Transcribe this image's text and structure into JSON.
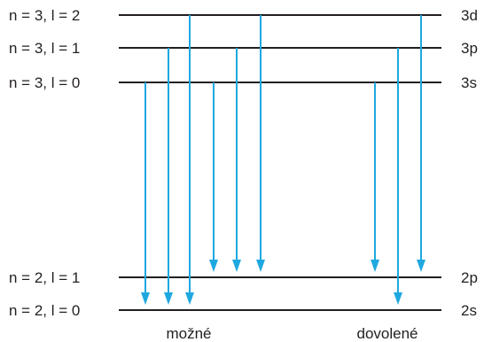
{
  "levels": [
    {
      "id": "3d",
      "left_label": "n = 3, l = 2",
      "right_label": "3d"
    },
    {
      "id": "3p",
      "left_label": "n = 3, l = 1",
      "right_label": "3p"
    },
    {
      "id": "3s",
      "left_label": "n = 3, l = 0",
      "right_label": "3s"
    },
    {
      "id": "2p",
      "left_label": "n = 2, l = 1",
      "right_label": "2p"
    },
    {
      "id": "2s",
      "left_label": "n = 2, l = 0",
      "right_label": "2s"
    }
  ],
  "groups": {
    "possible": {
      "label": "možné",
      "transitions": [
        {
          "from": "3s",
          "to": "2s"
        },
        {
          "from": "3p",
          "to": "2s"
        },
        {
          "from": "3d",
          "to": "2s"
        },
        {
          "from": "3s",
          "to": "2p"
        },
        {
          "from": "3p",
          "to": "2p"
        },
        {
          "from": "3d",
          "to": "2p"
        }
      ]
    },
    "allowed": {
      "label": "dovolené",
      "transitions": [
        {
          "from": "3s",
          "to": "2p"
        },
        {
          "from": "3p",
          "to": "2s"
        },
        {
          "from": "3d",
          "to": "2p"
        }
      ]
    }
  },
  "colors": {
    "arrow": "#1fa8e0",
    "line": "#231f20"
  }
}
